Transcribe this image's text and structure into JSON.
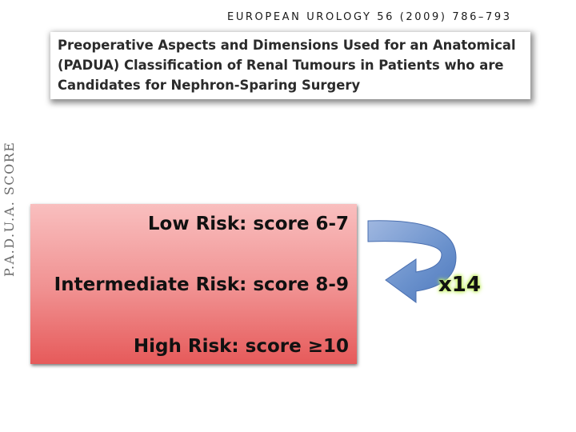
{
  "header": {
    "journal": "EUROPEAN UROLOGY 56 (2009) 786–793"
  },
  "article": {
    "title_lines": [
      "Preoperative Aspects and Dimensions Used for an Anatomical",
      "(PADUA) Classification of Renal Tumours in Patients who are",
      "Candidates for Nephron-Sparing Surgery"
    ]
  },
  "side_label": "P.A.D.U.A. SCORE",
  "risk_levels": [
    {
      "label": "Low Risk: score 6-7"
    },
    {
      "label": "Intermediate Risk: score 8-9"
    },
    {
      "label": "High Risk: score ≥10"
    }
  ],
  "multiplier": "x14",
  "colors": {
    "box_top": "#f9bfbf",
    "box_bottom": "#e65a5a",
    "arrow": "#5b84c4",
    "glow": "#c8f06a"
  },
  "icons": {
    "arrow": "curved-return-arrow-icon"
  }
}
